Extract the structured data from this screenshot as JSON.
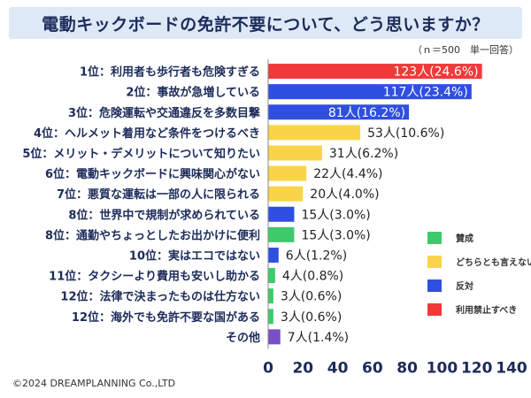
{
  "title": "電動キックボードの免許不要について、どう思いますか？",
  "note": "（ｎ＝500　単一回答）",
  "copyright": "©2024 DREAMPLANNING Co.,LTD",
  "colors": {
    "賛成": "#3ec96b",
    "どちらとも言えない": "#f9d44a",
    "反対": "#2f4fe0",
    "利用禁止すべき": "#f03a3a",
    "その他": "#7b4fc9"
  },
  "chart_data": {
    "type": "bar",
    "orientation": "horizontal",
    "xlim": [
      0,
      140
    ],
    "xticks": [
      0,
      20,
      40,
      60,
      80,
      100,
      120,
      140
    ],
    "grid": false,
    "legend_placement": "bottom-right",
    "legend": [
      "賛成",
      "どちらとも言えない",
      "反対",
      "利用禁止すべき"
    ],
    "categories": [
      {
        "label": "1位：利用者も歩行者も危険すぎる",
        "value": 123,
        "value_label": "123人(24.6%)",
        "group": "利用禁止すべき"
      },
      {
        "label": "2位：事故が急増している",
        "value": 117,
        "value_label": "117人(23.4%)",
        "group": "反対"
      },
      {
        "label": "3位：危険運転や交通違反を多数目撃",
        "value": 81,
        "value_label": "81人(16.2%)",
        "group": "反対"
      },
      {
        "label": "4位：ヘルメット着用など条件をつけるべき",
        "value": 53,
        "value_label": "53人(10.6%)",
        "group": "どちらとも言えない"
      },
      {
        "label": "5位：メリット・デメリットについて知りたい",
        "value": 31,
        "value_label": "31人(6.2%)",
        "group": "どちらとも言えない"
      },
      {
        "label": "6位：電動キックボードに興味関心がない",
        "value": 22,
        "value_label": "22人(4.4%)",
        "group": "どちらとも言えない"
      },
      {
        "label": "7位：悪質な運転は一部の人に限られる",
        "value": 20,
        "value_label": "20人(4.0%)",
        "group": "どちらとも言えない"
      },
      {
        "label": "8位：世界中で規制が求められている",
        "value": 15,
        "value_label": "15人(3.0%)",
        "group": "反対"
      },
      {
        "label": "8位：通勤やちょっとしたお出かけに便利",
        "value": 15,
        "value_label": "15人(3.0%)",
        "group": "賛成"
      },
      {
        "label": "10位：実はエコではない",
        "value": 6,
        "value_label": "6人(1.2%)",
        "group": "反対"
      },
      {
        "label": "11位：タクシーより費用も安いし助かる",
        "value": 4,
        "value_label": "4人(0.8%)",
        "group": "賛成"
      },
      {
        "label": "12位：法律で決まったものは仕方ない",
        "value": 3,
        "value_label": "3人(0.6%)",
        "group": "賛成"
      },
      {
        "label": "12位：海外でも免許不要な国がある",
        "value": 3,
        "value_label": "3人(0.6%)",
        "group": "賛成"
      },
      {
        "label": "その他",
        "value": 7,
        "value_label": "7人(1.4%)",
        "group": "その他"
      }
    ]
  }
}
